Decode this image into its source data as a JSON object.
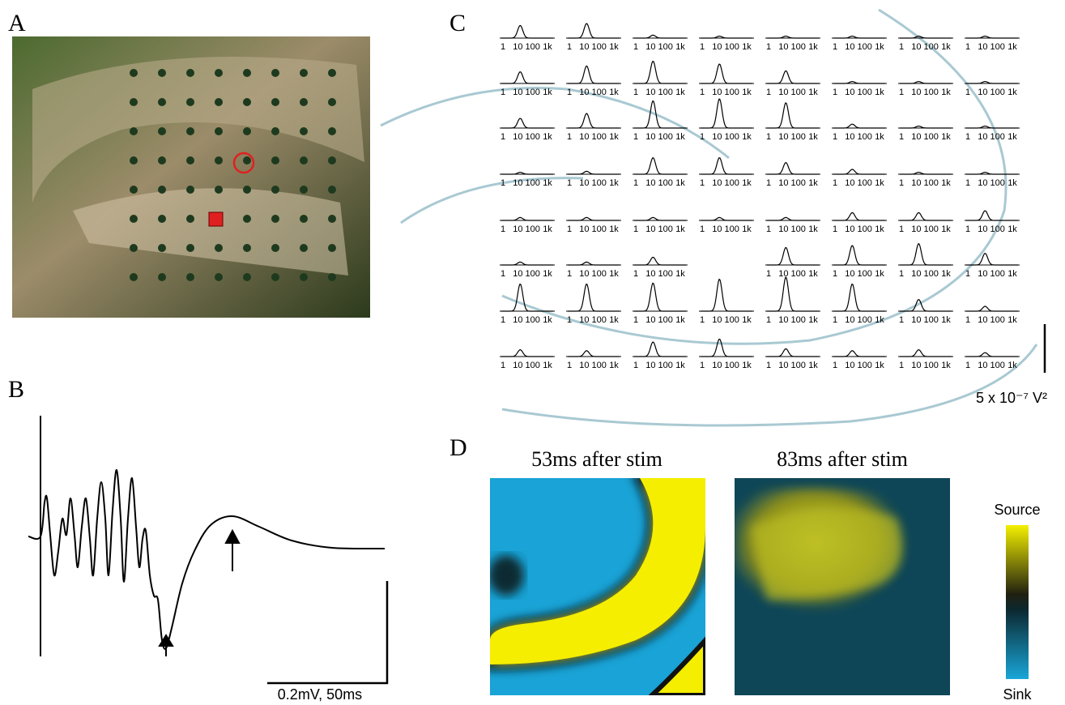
{
  "panels": {
    "a": {
      "label": "A"
    },
    "b": {
      "label": "B",
      "scale_bar": "0.2mV, 50ms"
    },
    "c": {
      "label": "C",
      "x_tick_labels": [
        "1",
        "10",
        "100",
        "1k"
      ],
      "scale_bar": {
        "value": 5,
        "label": "5 x 10⁻⁷ V²"
      },
      "peak_power": [
        [
          1.3,
          1.5,
          0.3,
          0.2,
          0.2,
          0.2,
          0.2,
          0.2
        ],
        [
          1.2,
          1.8,
          2.3,
          2.0,
          1.3,
          0.2,
          0.2,
          0.2
        ],
        [
          1.0,
          1.5,
          2.8,
          3.0,
          2.6,
          0.4,
          0.2,
          0.2
        ],
        [
          0.2,
          0.3,
          1.7,
          1.7,
          1.2,
          0.5,
          0.2,
          0.2
        ],
        [
          0.3,
          0.3,
          0.3,
          0.3,
          0.3,
          0.8,
          0.8,
          1.0
        ],
        [
          0.3,
          0.3,
          0.8,
          null,
          1.8,
          2.0,
          2.2,
          1.2
        ],
        [
          2.8,
          2.8,
          2.9,
          3.3,
          3.5,
          2.8,
          1.2,
          0.5
        ],
        [
          0.7,
          0.6,
          1.5,
          1.8,
          0.8,
          0.6,
          0.7,
          0.4
        ]
      ]
    },
    "d": {
      "label": "D",
      "maps": [
        {
          "title": "53ms after stim"
        },
        {
          "title": "83ms after stim"
        }
      ],
      "colorbar": {
        "top": "Source",
        "bottom": "Sink"
      }
    }
  }
}
